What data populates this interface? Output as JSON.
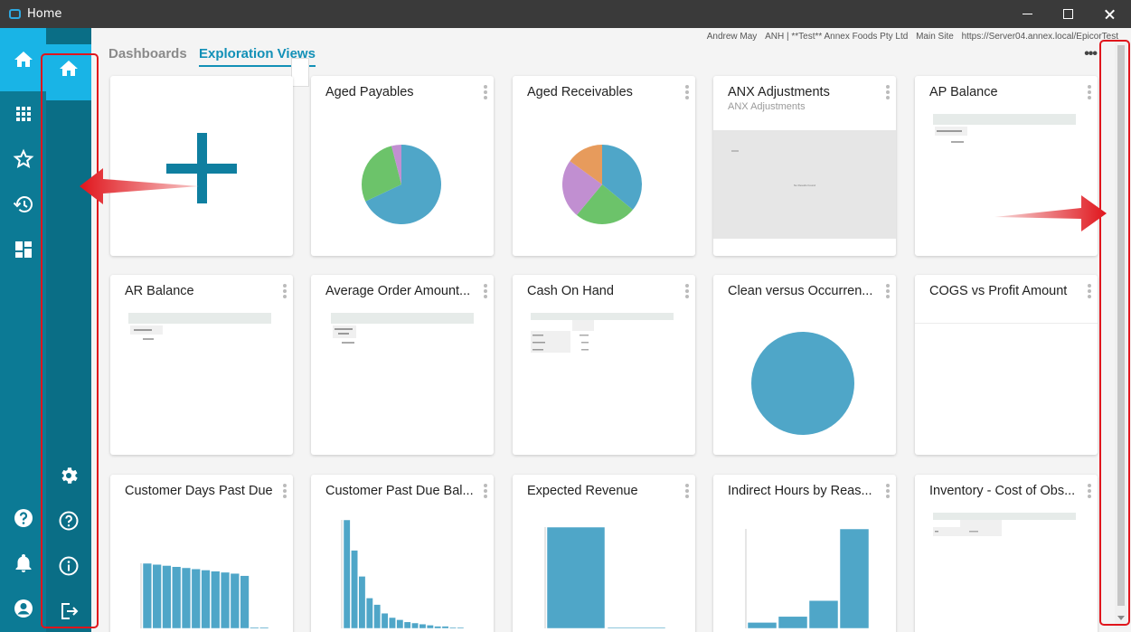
{
  "window": {
    "title": "Home"
  },
  "header": {
    "user": "Andrew May",
    "company": "ANH | **Test** Annex Foods Pty Ltd",
    "site": "Main Site",
    "server": "https://Server04.annex.local/EpicorTest",
    "more_label": "•••"
  },
  "tabs": [
    {
      "label": "Dashboards",
      "active": false
    },
    {
      "label": "Exploration Views",
      "active": true
    }
  ],
  "rail": {
    "top_icons": [
      "home-icon",
      "apps-grid-icon",
      "star-icon",
      "history-icon",
      "dashboard-icon"
    ],
    "bottom_icons": [
      "help-icon",
      "bell-icon",
      "account-icon"
    ]
  },
  "panel": {
    "top_icons": [
      "home-icon"
    ],
    "bottom_icons": [
      "gear-icon",
      "help-circle-icon",
      "info-icon",
      "logout-icon"
    ]
  },
  "tiles": [
    {
      "title": "Aged Payables",
      "viz": "pie"
    },
    {
      "title": "Aged Receivables",
      "viz": "pie"
    },
    {
      "title": "ANX Adjustments",
      "subtitle": "ANX Adjustments",
      "viz": "grid",
      "empty_text": "No Results Found"
    },
    {
      "title": "AP Balance",
      "viz": "table"
    },
    {
      "title": "AR Balance",
      "viz": "table"
    },
    {
      "title": "Average Order Amount...",
      "viz": "table"
    },
    {
      "title": "Cash On Hand",
      "viz": "table"
    },
    {
      "title": "Clean versus Occurren...",
      "viz": "pie"
    },
    {
      "title": "COGS vs Profit Amount",
      "viz": "blank"
    },
    {
      "title": "Customer Days Past Due",
      "viz": "bar"
    },
    {
      "title": "Customer Past Due Bal...",
      "viz": "bar"
    },
    {
      "title": "Expected Revenue",
      "viz": "bar"
    },
    {
      "title": "Indirect Hours by Reas...",
      "viz": "bar"
    },
    {
      "title": "Inventory - Cost of Obs...",
      "viz": "table"
    }
  ],
  "pies": {
    "aged_payables": {
      "slices": [
        68,
        28,
        4
      ],
      "colors": [
        "#4fa6c8",
        "#6cc36a",
        "#c18fd1"
      ]
    },
    "aged_receivables": {
      "slices": [
        36,
        25,
        24,
        15
      ],
      "colors": [
        "#4fa6c8",
        "#6cc36a",
        "#c18fd1",
        "#e79b5c"
      ]
    },
    "clean_vs_occurrence": {
      "slices": [
        100
      ],
      "colors": [
        "#4fa6c8"
      ]
    }
  },
  "bars": {
    "customer_days_past_due": [
      58,
      57,
      56,
      55,
      54,
      53,
      52,
      51,
      50,
      49,
      47,
      1,
      1
    ],
    "customer_past_due_bal": [
      100,
      72,
      48,
      28,
      22,
      14,
      10,
      8,
      6,
      5,
      4,
      3,
      2,
      2,
      1,
      1
    ],
    "expected_revenue": [
      100,
      1
    ],
    "indirect_hours": [
      6,
      12,
      28,
      100
    ]
  },
  "colors": {
    "accent": "#1290b7",
    "rail": "#0c7a95",
    "panel": "#0a6e86",
    "active": "#19b4e6",
    "highlight": "#e0151c"
  }
}
